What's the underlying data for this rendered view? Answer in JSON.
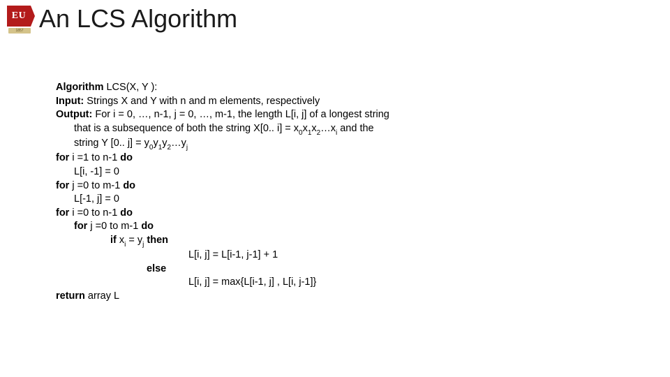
{
  "logo": {
    "text": "EU",
    "banner": "1857"
  },
  "title": "An LCS Algorithm",
  "algo": {
    "heading_bold": "Algorithm",
    "heading_rest": " LCS(X, Y ):",
    "input_bold": "Input:",
    "input_rest": "  Strings X and Y with n and m elements, respectively",
    "output_bold": "Output:",
    "output_rest1": " For i = 0, …, n-1, j = 0, …, m-1, the length L[i, j] of a longest string",
    "output_rest2_a": "that is a subsequence of both the string X[0.. i] = x",
    "output_rest2_b": "x",
    "output_rest2_c": "x",
    "output_rest2_d": "…x",
    "output_rest2_e": " and the",
    "output_rest3_a": "string Y [0.. j] = y",
    "output_rest3_b": "y",
    "output_rest3_c": "y",
    "output_rest3_d": "…y",
    "for1_a": "for",
    "for1_b": " i =1 to n-1 ",
    "for1_c": "do",
    "line_l1": "L[i, -1] = 0",
    "for2_a": "for",
    "for2_b": " j =0 to m-1 ",
    "for2_c": "do",
    "line_l2": "L[-1, j] = 0",
    "for3_a": "for",
    "for3_b": " i =0 to n-1 ",
    "for3_c": "do",
    "for4_a": "for",
    "for4_b": " j =0 to m-1 ",
    "for4_c": "do",
    "if_a": "if",
    "if_b_a": " x",
    "if_b_b": " = y",
    "if_c": "then",
    "then_line": "L[i, j] = L[i-1, j-1] + 1",
    "else_word": "else",
    "else_line": "L[i, j] = max{L[i-1, j] , L[i, j-1]}",
    "return_a": "return",
    "return_b": " array L",
    "sub_0": "0",
    "sub_1": "1",
    "sub_2": "2",
    "sub_i": "i",
    "sub_j": "j"
  },
  "style": {
    "background": "#ffffff",
    "text_color": "#000000",
    "title_color": "#1a1a1a",
    "logo_bg": "#b31b1b",
    "logo_banner": "#d4c38a",
    "title_fontsize": 36,
    "body_fontsize": 14.5
  }
}
